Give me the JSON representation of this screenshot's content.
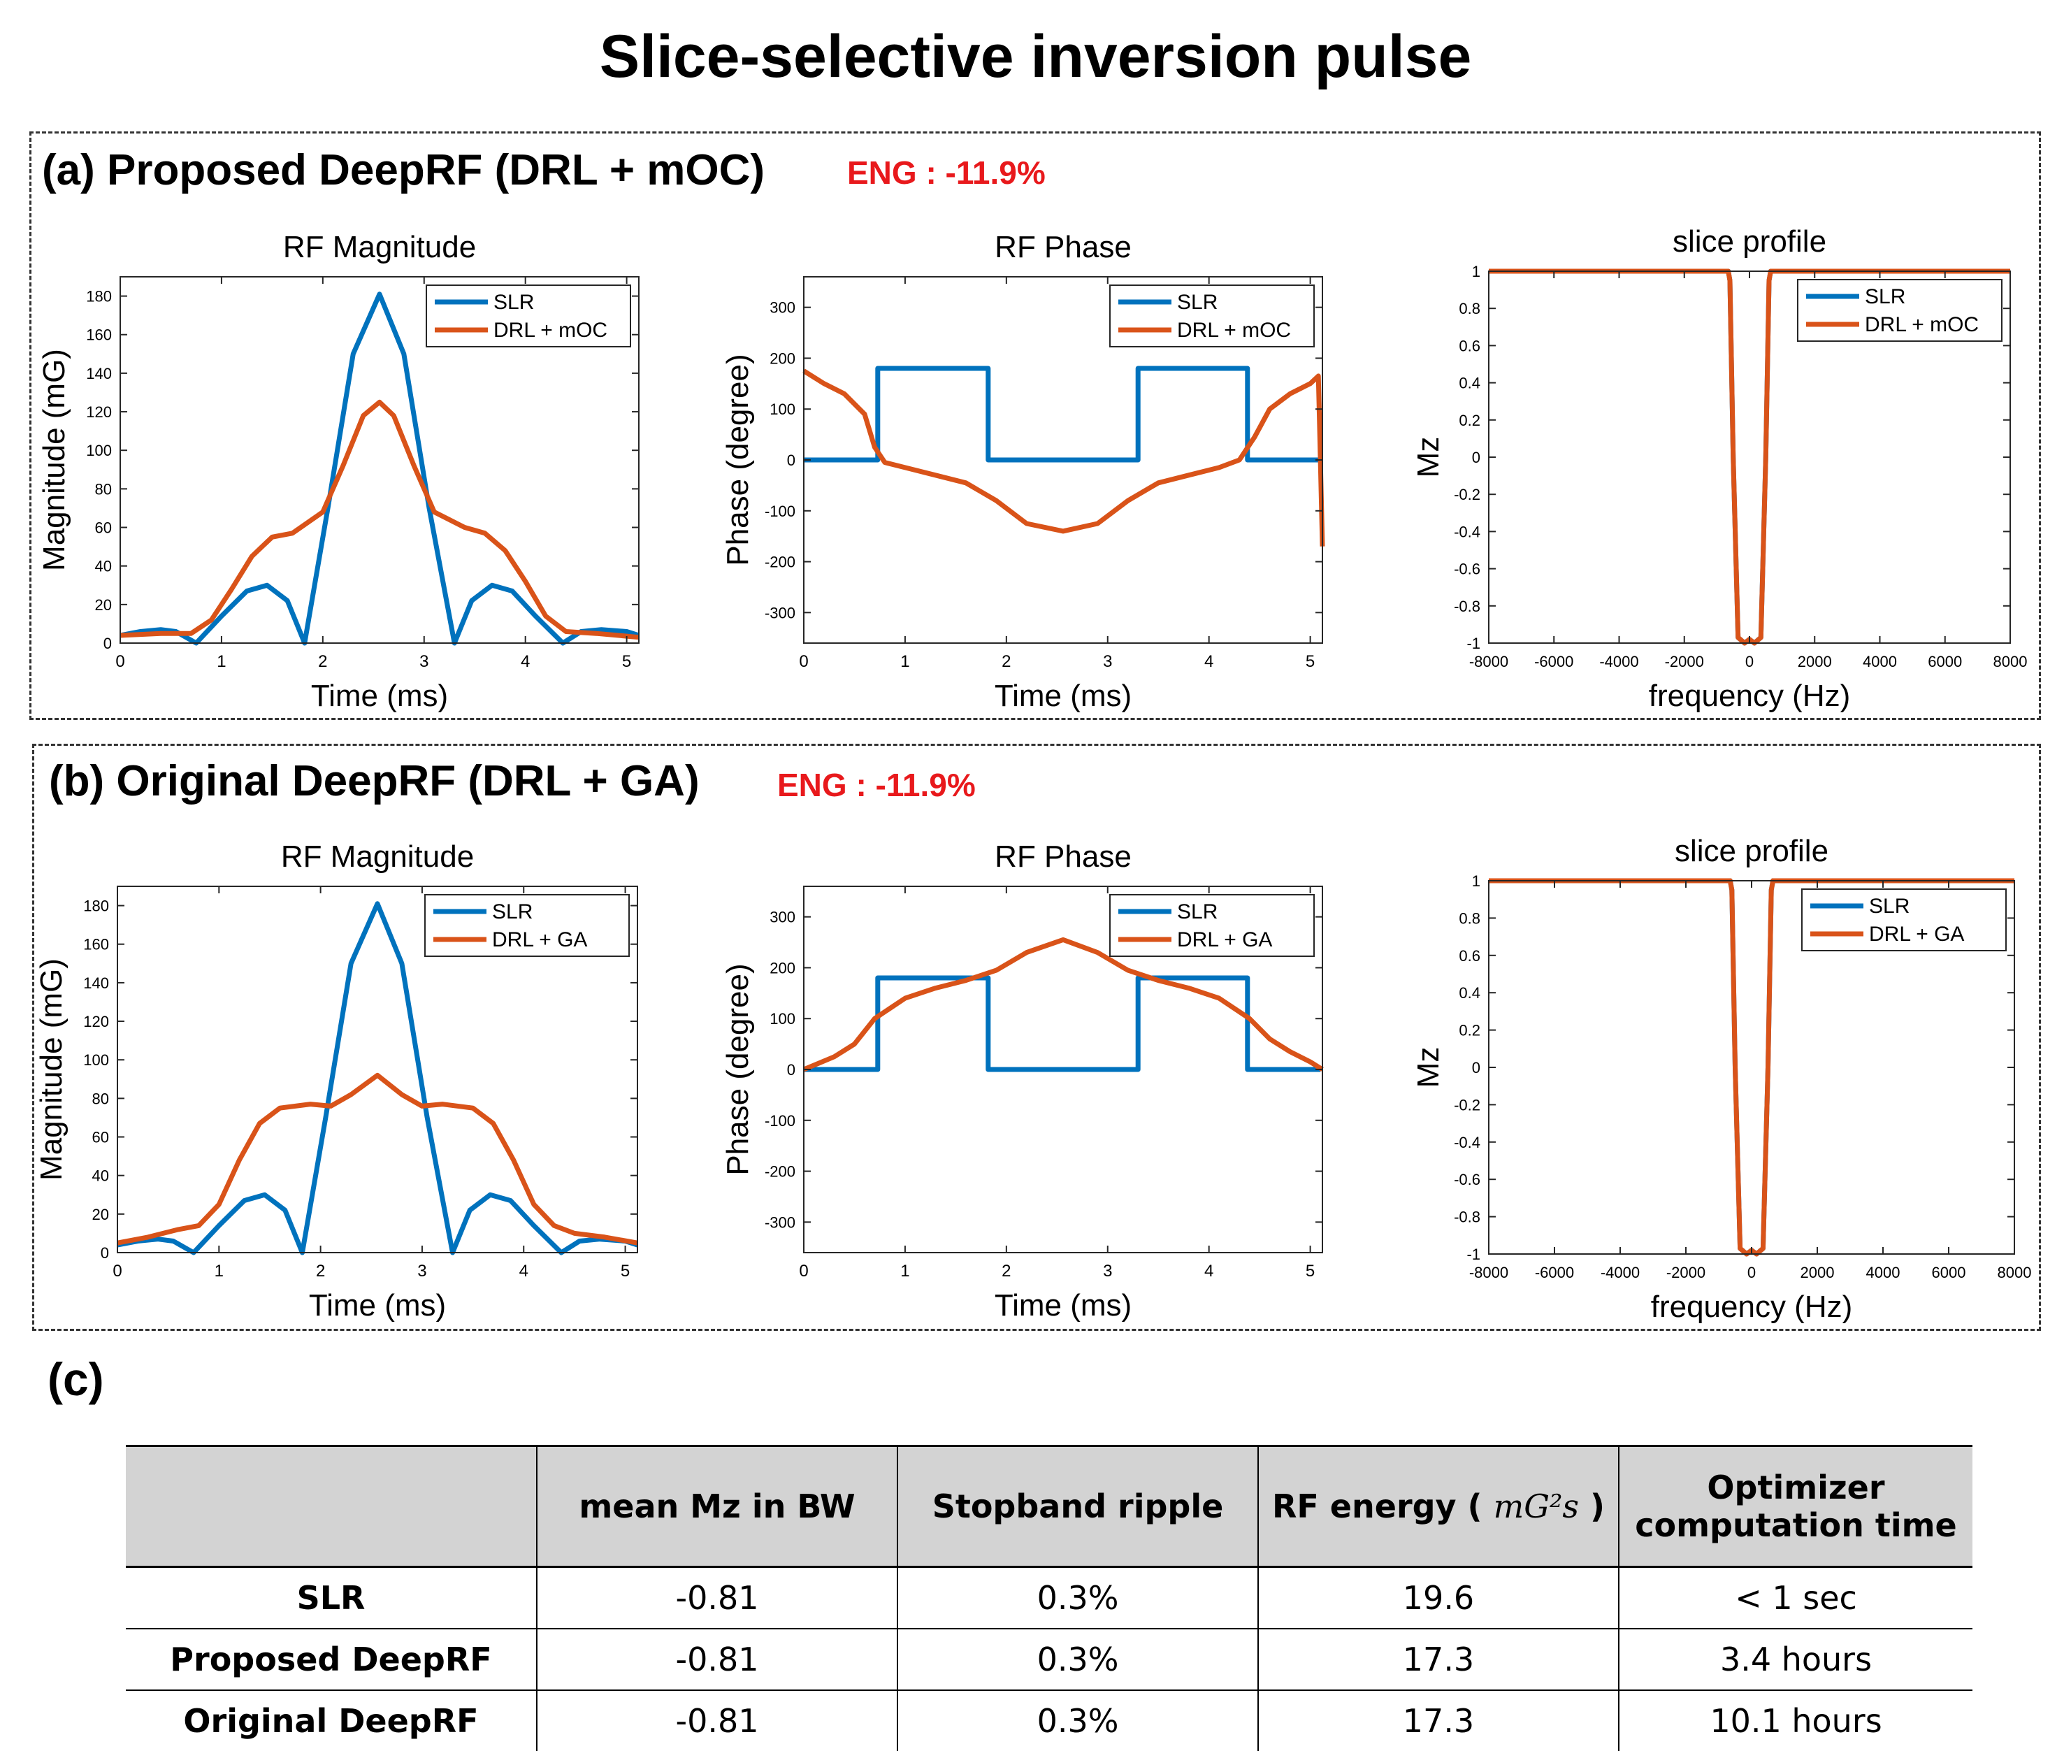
{
  "title": "Slice-selective inversion pulse",
  "panels": [
    {
      "label": "(a) Proposed DeepRF (DRL + mOC)",
      "eng": "ENG : -11.9%",
      "method": "DRL + mOC"
    },
    {
      "label": "(b) Original DeepRF (DRL + GA)",
      "eng": "ENG : -11.9%",
      "method": "DRL + GA"
    }
  ],
  "colors": {
    "slr": "#0072bd",
    "drl": "#d95319"
  },
  "chart_data": [
    {
      "panel": "a",
      "type": "line",
      "title": "RF Magnitude",
      "xlabel": "Time (ms)",
      "ylabel": "Magnitude (mG)",
      "xlim": [
        0,
        5.12
      ],
      "ylim": [
        0,
        190
      ],
      "xticks": [
        0,
        1,
        2,
        3,
        4,
        5
      ],
      "yticks": [
        0,
        20,
        40,
        60,
        80,
        100,
        120,
        140,
        160,
        180
      ],
      "legend": [
        "SLR",
        "DRL + mOC"
      ],
      "legend_position": "top-right",
      "series": [
        {
          "name": "SLR",
          "x": [
            0,
            0.2,
            0.4,
            0.55,
            0.75,
            1.0,
            1.25,
            1.45,
            1.65,
            1.82,
            2.05,
            2.3,
            2.56,
            2.8,
            3.05,
            3.3,
            3.47,
            3.67,
            3.87,
            4.1,
            4.37,
            4.55,
            4.75,
            5.0,
            5.12
          ],
          "y": [
            4,
            6,
            7,
            6,
            0,
            14,
            27,
            30,
            22,
            0,
            70,
            150,
            181,
            150,
            70,
            0,
            22,
            30,
            27,
            14,
            0,
            6,
            7,
            6,
            4
          ]
        },
        {
          "name": "DRL + mOC",
          "x": [
            0,
            0.4,
            0.7,
            0.9,
            1.1,
            1.3,
            1.5,
            1.7,
            2.0,
            2.2,
            2.4,
            2.56,
            2.7,
            2.9,
            3.1,
            3.4,
            3.6,
            3.8,
            4.0,
            4.2,
            4.4,
            4.7,
            5.12
          ],
          "y": [
            4,
            5,
            5,
            12,
            28,
            45,
            55,
            57,
            68,
            92,
            118,
            125,
            118,
            92,
            68,
            60,
            57,
            48,
            32,
            14,
            6,
            5,
            3
          ]
        }
      ]
    },
    {
      "panel": "a",
      "type": "line",
      "title": "RF Phase",
      "xlabel": "Time (ms)",
      "ylabel": "Phase (degree)",
      "xlim": [
        0,
        5.12
      ],
      "ylim": [
        -360,
        360
      ],
      "xticks": [
        0,
        1,
        2,
        3,
        4,
        5
      ],
      "yticks": [
        -300,
        -200,
        -100,
        0,
        100,
        200,
        300
      ],
      "legend": [
        "SLR",
        "DRL + mOC"
      ],
      "legend_position": "top-right",
      "series": [
        {
          "name": "SLR",
          "x": [
            0,
            0.73,
            0.73,
            1.82,
            1.82,
            3.3,
            3.3,
            4.38,
            4.38,
            5.1
          ],
          "y": [
            0,
            0,
            180,
            180,
            0,
            0,
            180,
            180,
            0,
            0
          ]
        },
        {
          "name": "DRL + mOC",
          "x": [
            0,
            0.2,
            0.4,
            0.6,
            0.7,
            0.8,
            1.0,
            1.3,
            1.6,
            1.9,
            2.2,
            2.56,
            2.9,
            3.2,
            3.5,
            3.8,
            4.1,
            4.3,
            4.45,
            4.6,
            4.8,
            5.0,
            5.08,
            5.1,
            5.12
          ],
          "y": [
            175,
            150,
            130,
            90,
            25,
            -5,
            -15,
            -30,
            -45,
            -80,
            -125,
            -140,
            -125,
            -80,
            -45,
            -30,
            -15,
            0,
            45,
            100,
            130,
            150,
            165,
            0,
            -170
          ]
        }
      ]
    },
    {
      "panel": "a",
      "type": "line",
      "title": "slice profile",
      "xlabel": "frequency (Hz)",
      "ylabel": "Mz",
      "xlim": [
        -8000,
        8000
      ],
      "ylim": [
        -1,
        1
      ],
      "xticks": [
        -8000,
        -6000,
        -4000,
        -2000,
        0,
        2000,
        4000,
        6000,
        8000
      ],
      "yticks": [
        -1,
        -0.8,
        -0.6,
        -0.4,
        -0.2,
        0,
        0.2,
        0.4,
        0.6,
        0.8,
        1
      ],
      "legend": [
        "SLR",
        "DRL + mOC"
      ],
      "legend_position": "top-right",
      "series": [
        {
          "name": "SLR",
          "x": [
            -8000,
            -650,
            -600,
            -500,
            -350,
            -150,
            0,
            150,
            350,
            500,
            600,
            650,
            8000
          ],
          "y": [
            1,
            1,
            0.95,
            0,
            -0.97,
            -1,
            -0.98,
            -1,
            -0.97,
            0,
            0.95,
            1,
            1
          ]
        },
        {
          "name": "DRL + mOC",
          "x": [
            -8000,
            -650,
            -600,
            -500,
            -350,
            -150,
            0,
            150,
            350,
            500,
            600,
            650,
            8000
          ],
          "y": [
            1,
            1,
            0.95,
            0,
            -0.97,
            -1,
            -0.98,
            -1,
            -0.97,
            0,
            0.95,
            1,
            1
          ]
        }
      ]
    },
    {
      "panel": "b",
      "type": "line",
      "title": "RF Magnitude",
      "xlabel": "Time (ms)",
      "ylabel": "Magnitude (mG)",
      "xlim": [
        0,
        5.12
      ],
      "ylim": [
        0,
        190
      ],
      "xticks": [
        0,
        1,
        2,
        3,
        4,
        5
      ],
      "yticks": [
        0,
        20,
        40,
        60,
        80,
        100,
        120,
        140,
        160,
        180
      ],
      "legend": [
        "SLR",
        "DRL + GA"
      ],
      "legend_position": "top-right",
      "series": [
        {
          "name": "SLR",
          "x": [
            0,
            0.2,
            0.4,
            0.55,
            0.75,
            1.0,
            1.25,
            1.45,
            1.65,
            1.82,
            2.05,
            2.3,
            2.56,
            2.8,
            3.05,
            3.3,
            3.47,
            3.67,
            3.87,
            4.1,
            4.37,
            4.55,
            4.75,
            5.0,
            5.12
          ],
          "y": [
            4,
            6,
            7,
            6,
            0,
            14,
            27,
            30,
            22,
            0,
            70,
            150,
            181,
            150,
            70,
            0,
            22,
            30,
            27,
            14,
            0,
            6,
            7,
            6,
            4
          ]
        },
        {
          "name": "DRL + GA",
          "x": [
            0,
            0.3,
            0.6,
            0.8,
            1.0,
            1.2,
            1.4,
            1.6,
            1.9,
            2.1,
            2.3,
            2.56,
            2.8,
            3.0,
            3.2,
            3.5,
            3.7,
            3.9,
            4.1,
            4.3,
            4.5,
            4.8,
            5.12
          ],
          "y": [
            5,
            8,
            12,
            14,
            25,
            48,
            67,
            75,
            77,
            76,
            82,
            92,
            82,
            76,
            77,
            75,
            67,
            48,
            25,
            14,
            10,
            8,
            5
          ]
        }
      ]
    },
    {
      "panel": "b",
      "type": "line",
      "title": "RF Phase",
      "xlabel": "Time (ms)",
      "ylabel": "Phase (degree)",
      "xlim": [
        0,
        5.12
      ],
      "ylim": [
        -360,
        360
      ],
      "xticks": [
        0,
        1,
        2,
        3,
        4,
        5
      ],
      "yticks": [
        -300,
        -200,
        -100,
        0,
        100,
        200,
        300
      ],
      "legend": [
        "SLR",
        "DRL + GA"
      ],
      "legend_position": "top-right",
      "series": [
        {
          "name": "SLR",
          "x": [
            0,
            0.73,
            0.73,
            1.82,
            1.82,
            3.3,
            3.3,
            4.38,
            4.38,
            5.1
          ],
          "y": [
            0,
            0,
            180,
            180,
            0,
            0,
            180,
            180,
            0,
            0
          ]
        },
        {
          "name": "DRL + GA",
          "x": [
            0,
            0.3,
            0.5,
            0.7,
            1.0,
            1.3,
            1.6,
            1.9,
            2.2,
            2.56,
            2.9,
            3.2,
            3.5,
            3.8,
            4.1,
            4.4,
            4.6,
            4.8,
            5.0,
            5.12
          ],
          "y": [
            0,
            25,
            50,
            100,
            140,
            160,
            175,
            195,
            230,
            255,
            230,
            195,
            175,
            160,
            140,
            100,
            60,
            35,
            15,
            0
          ]
        }
      ]
    },
    {
      "panel": "b",
      "type": "line",
      "title": "slice profile",
      "xlabel": "frequency (Hz)",
      "ylabel": "Mz",
      "xlim": [
        -8000,
        8000
      ],
      "ylim": [
        -1,
        1
      ],
      "xticks": [
        -8000,
        -6000,
        -4000,
        -2000,
        0,
        2000,
        4000,
        6000,
        8000
      ],
      "yticks": [
        -1,
        -0.8,
        -0.6,
        -0.4,
        -0.2,
        0,
        0.2,
        0.4,
        0.6,
        0.8,
        1
      ],
      "legend": [
        "SLR",
        "DRL + GA"
      ],
      "legend_position": "top-right",
      "series": [
        {
          "name": "SLR",
          "x": [
            -8000,
            -650,
            -600,
            -500,
            -350,
            -150,
            0,
            150,
            350,
            500,
            600,
            650,
            8000
          ],
          "y": [
            1,
            1,
            0.95,
            0,
            -0.97,
            -1,
            -0.98,
            -1,
            -0.97,
            0,
            0.95,
            1,
            1
          ]
        },
        {
          "name": "DRL + GA",
          "x": [
            -8000,
            -650,
            -600,
            -500,
            -350,
            -150,
            0,
            150,
            350,
            500,
            600,
            650,
            8000
          ],
          "y": [
            1,
            1,
            0.95,
            0,
            -0.97,
            -1,
            -0.98,
            -1,
            -0.97,
            0,
            0.95,
            1,
            1
          ]
        }
      ]
    }
  ],
  "table": {
    "label": "(c)",
    "headers": [
      "",
      "mean Mz in BW",
      "Stopband ripple",
      "RF energy ( ",
      "Optimizer computation time"
    ],
    "energy_unit": "mG²s",
    "energy_close": " )",
    "optimizer_line1": "Optimizer",
    "optimizer_line2": "computation time",
    "rows": [
      [
        "SLR",
        "-0.81",
        "0.3%",
        "19.6",
        "< 1 sec"
      ],
      [
        "Proposed DeepRF",
        "-0.81",
        "0.3%",
        "17.3",
        "3.4 hours"
      ],
      [
        "Original DeepRF",
        "-0.81",
        "0.3%",
        "17.3",
        "10.1 hours"
      ]
    ]
  }
}
